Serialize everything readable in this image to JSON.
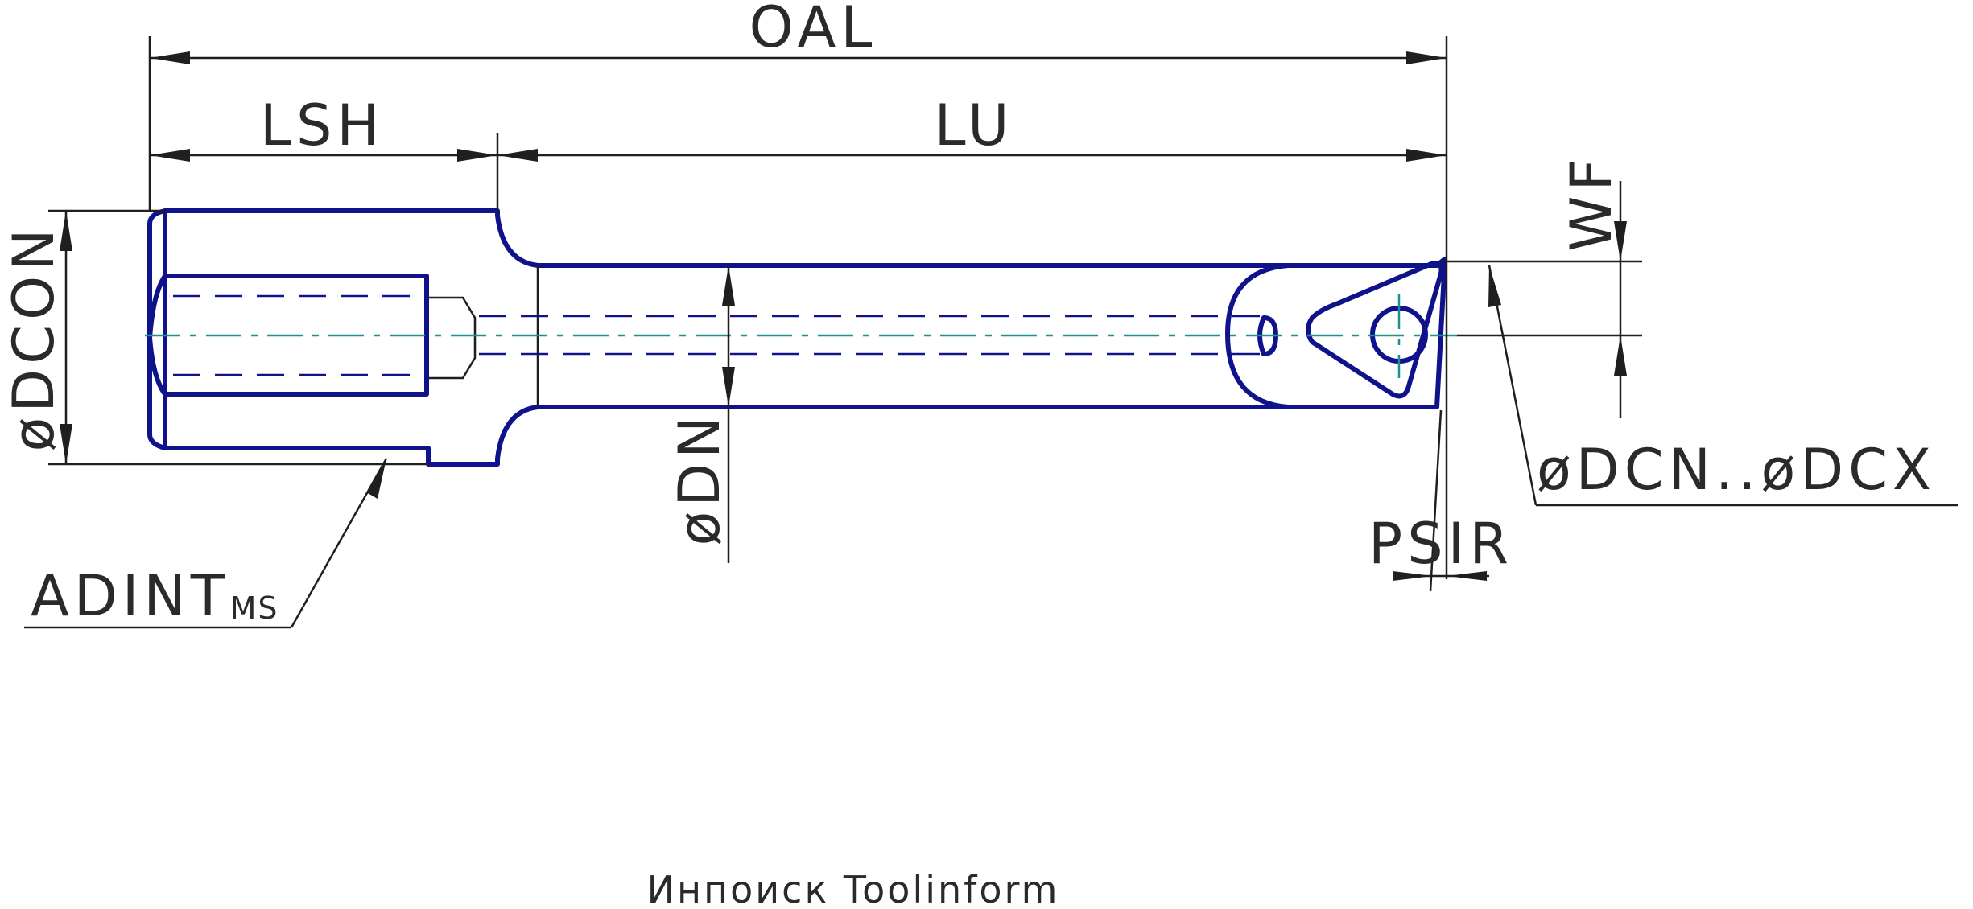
{
  "labels": {
    "oal": "OAL",
    "lsh": "LSH",
    "lu": "LU",
    "dcon": "øDCON",
    "dn": "øDN",
    "wf": "WF",
    "dcn_dcx": "øDCN..øDCX",
    "psir": "PSIR",
    "adint": "ADINT",
    "adint_sub": "MS"
  },
  "footer": {
    "brand": "Инпоиск Toolinform"
  },
  "colors": {
    "part_outline": "#10128c",
    "centerline": "#1f8f8f",
    "dimension": "#1f1f1f"
  }
}
